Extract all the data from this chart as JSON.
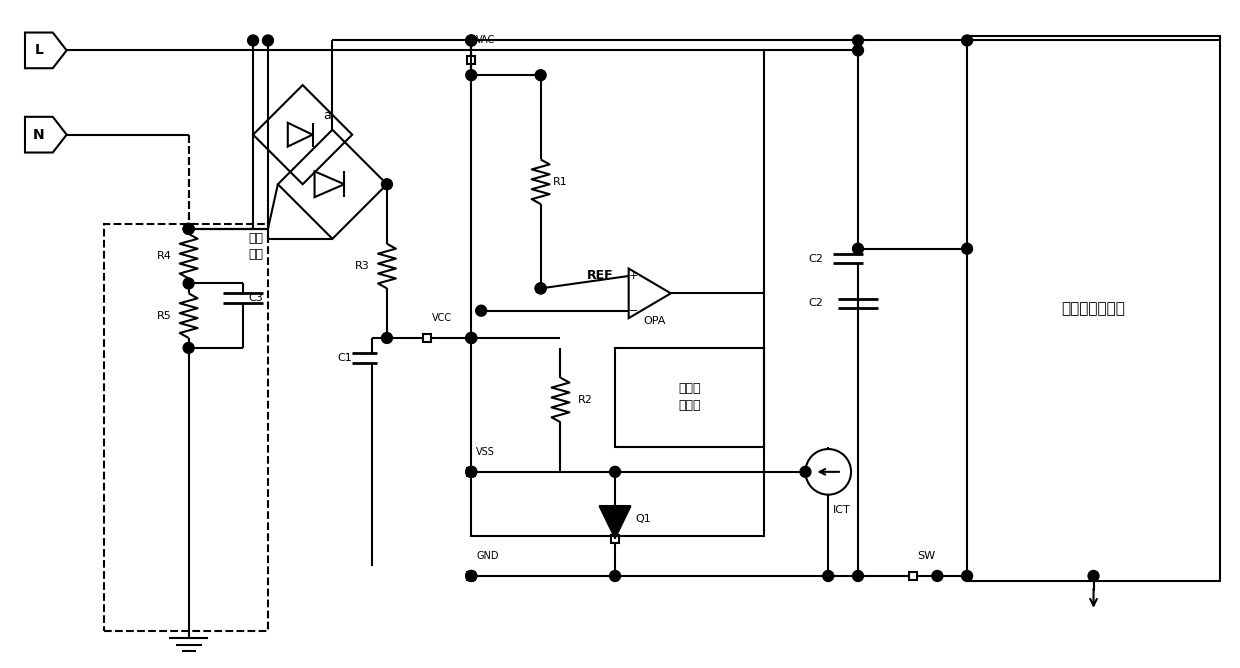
{
  "bg_color": "#ffffff",
  "line_color": "#000000",
  "line_width": 1.5,
  "figsize": [
    12.4,
    6.68
  ],
  "dpi": 100,
  "components": {
    "L_label": "L",
    "N_label": "N",
    "R1_label": "R1",
    "R2_label": "R2",
    "R3_label": "R3",
    "R4_label": "R4",
    "R5_label": "R5",
    "C1_label": "C1",
    "C2_label": "C2",
    "C3_label": "C3",
    "Q1_label": "Q1",
    "VAC_label": "VAC",
    "VCC_label": "VCC",
    "VSS_label": "VSS",
    "GND_label": "GND",
    "SW_label": "SW",
    "REF_label": "REF",
    "OPA_label": "OPA",
    "ICT_label": "ICT",
    "a_label": "a",
    "logic_label": "逻辑控\n制电路",
    "drive_label": "驱动模组及负载",
    "human_label": "人体\n模型"
  }
}
